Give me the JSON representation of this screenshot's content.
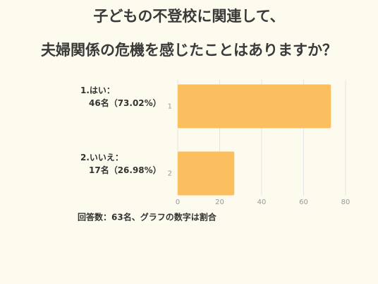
{
  "chart_data": {
    "type": "bar",
    "orientation": "horizontal",
    "title": [
      "子どもの不登校に関連して、",
      "夫婦関係の危機を感じたことはありますか？"
    ],
    "categories": [
      "1",
      "2"
    ],
    "values": [
      73.02,
      26.98
    ],
    "color": "#fbbf5f",
    "xlim": [
      0,
      80
    ],
    "xticks": [
      0,
      20,
      40,
      60,
      80
    ],
    "grid": true,
    "annotations": [
      [
        "1.はい：",
        "46名（73.02%）"
      ],
      [
        "2.いいえ：",
        "17名（26.98%）"
      ]
    ],
    "footnote": "回答数：63名、グラフの数字は割合"
  }
}
